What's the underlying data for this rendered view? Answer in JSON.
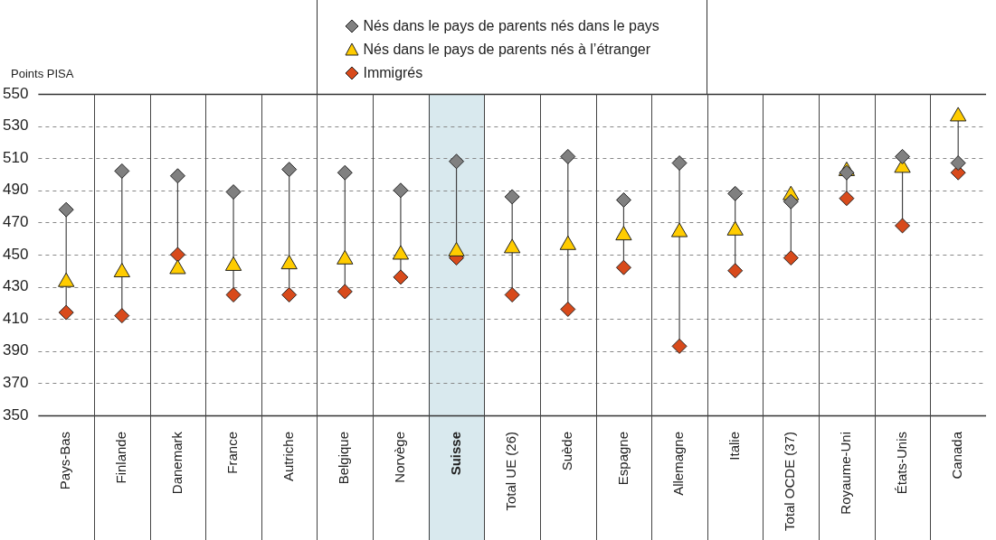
{
  "chart_data": {
    "type": "scatter",
    "ylabel": "Points PISA",
    "categories": [
      "Pays-Bas",
      "Finlande",
      "Danemark",
      "France",
      "Autriche",
      "Belgique",
      "Norvège",
      "Suisse",
      "Total UE (26)",
      "Suède",
      "Espagne",
      "Allemagne",
      "Italie",
      "Total OCDE (37)",
      "Royaume-Uni",
      "États-Unis",
      "Canada"
    ],
    "series": [
      {
        "name": "Nés dans le pays de parents nés dans le pays",
        "color": "#808080",
        "marker": "diamond",
        "values": [
          478,
          502,
          499,
          489,
          503,
          501,
          490,
          508,
          486,
          511,
          484,
          507,
          488,
          483,
          501,
          511,
          507
        ]
      },
      {
        "name": "Nés dans le pays de parents nés à l’étranger",
        "color": "#ffcc00",
        "marker": "triangle",
        "values": [
          433,
          439,
          441,
          443,
          444,
          447,
          450,
          452,
          454,
          456,
          462,
          464,
          465,
          487,
          502,
          504,
          536
        ]
      },
      {
        "name": "Immigrés",
        "color": "#d84a1b",
        "marker": "diamond",
        "values": [
          414,
          412,
          450,
          425,
          425,
          427,
          436,
          448,
          425,
          416,
          442,
          393,
          440,
          448,
          485,
          468,
          501
        ]
      }
    ],
    "ylim": [
      350,
      550
    ],
    "yticks": [
      350,
      370,
      390,
      410,
      430,
      450,
      470,
      490,
      510,
      530,
      550
    ],
    "grid": "y",
    "legend": "top",
    "bands": [
      {
        "axis": "x",
        "from": "Suisse",
        "to": "Suisse",
        "color": "#d9e9ee"
      }
    ]
  }
}
